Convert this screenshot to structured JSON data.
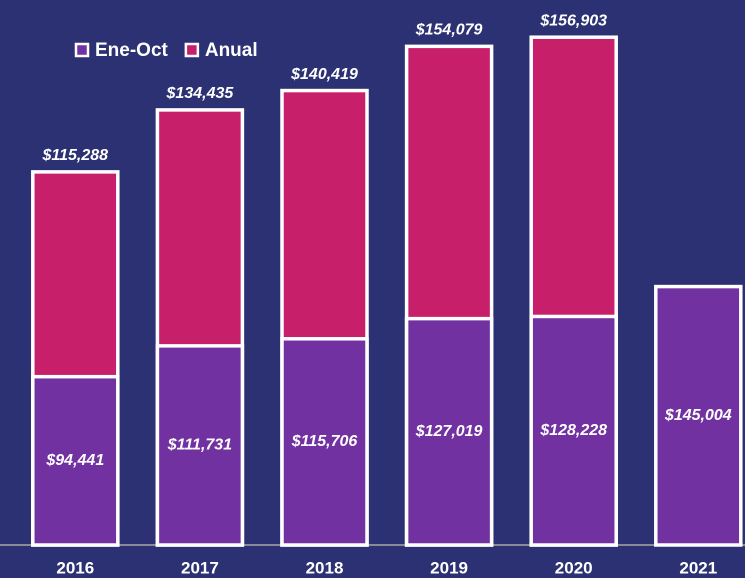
{
  "chart_data": {
    "type": "bar",
    "categories": [
      "2016",
      "2017",
      "2018",
      "2019",
      "2020",
      "2021"
    ],
    "series": [
      {
        "name": "Anual",
        "color": "#c81f6a",
        "axis": "y",
        "values": [
          115288,
          134435,
          140419,
          154079,
          156903,
          null
        ],
        "value_labels": [
          "$115,288",
          "$134,435",
          "$140,419",
          "$154,079",
          "$156,903",
          null
        ]
      },
      {
        "name": "Ene-Oct",
        "color": "#7231a1",
        "axis": "y2",
        "values": [
          94441,
          111731,
          115706,
          127019,
          128228,
          145004
        ],
        "value_labels": [
          "$94,441",
          "$111,731",
          "$115,706",
          "$127,019",
          "$128,228",
          "$145,004"
        ]
      }
    ],
    "ylim": [
      0,
      168400
    ],
    "y2lim": [
      0,
      305800
    ],
    "legend": "top-left"
  }
}
